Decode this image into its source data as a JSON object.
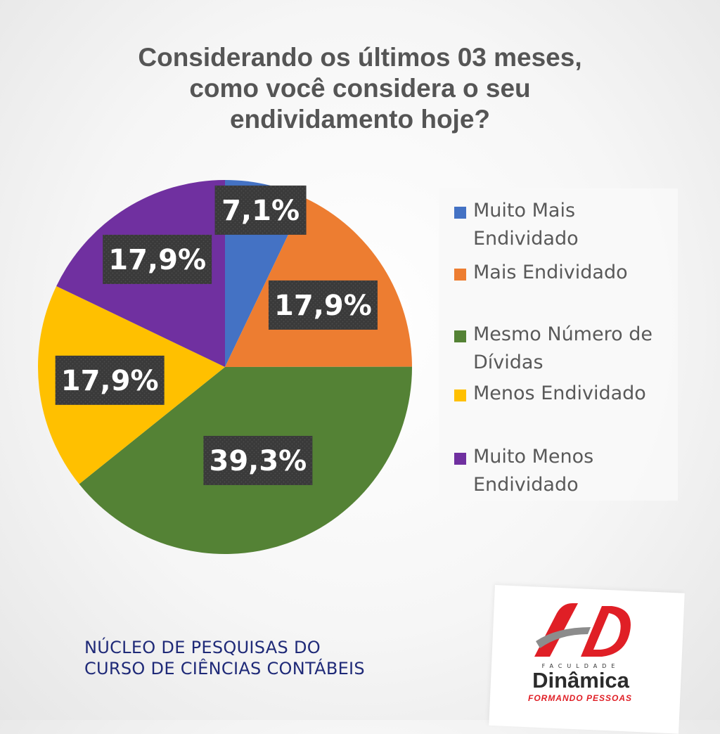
{
  "title": {
    "lines": [
      "Considerando os últimos 03 meses,",
      "como você considera o seu",
      "endividamento hoje?"
    ]
  },
  "chart_data": {
    "type": "pie",
    "title": "Considerando os últimos 03 meses, como você considera o seu endividamento hoje?",
    "start_angle_deg": 0,
    "direction": "clockwise",
    "legend_position": "right",
    "slices": [
      {
        "label": "Muito Mais Endividado",
        "value": 7.1,
        "display": "7,1%",
        "color": "#4472C4"
      },
      {
        "label": "Mais Endividado",
        "value": 17.9,
        "display": "17,9%",
        "color": "#ED7D31"
      },
      {
        "label": "Mesmo Número de Dívidas",
        "value": 39.3,
        "display": "39,3%",
        "color": "#548235"
      },
      {
        "label": "Menos Endividado",
        "value": 17.9,
        "display": "17,9%",
        "color": "#FFC000"
      },
      {
        "label": "Muito Menos Endividado",
        "value": 17.9,
        "display": "17,9%",
        "color": "#7030A0"
      }
    ],
    "data_label_background": "#3a3a3a",
    "data_label_color": "#ffffff"
  },
  "footer": {
    "lines": [
      "NÚCLEO DE PESQUISAS DO",
      "CURSO DE CIÊNCIAS CONTÁBEIS"
    ]
  },
  "logo": {
    "small": "FACULDADE",
    "name": "Dinâmica",
    "tagline": "FORMANDO PESSOAS",
    "accent_color": "#E01F26"
  }
}
